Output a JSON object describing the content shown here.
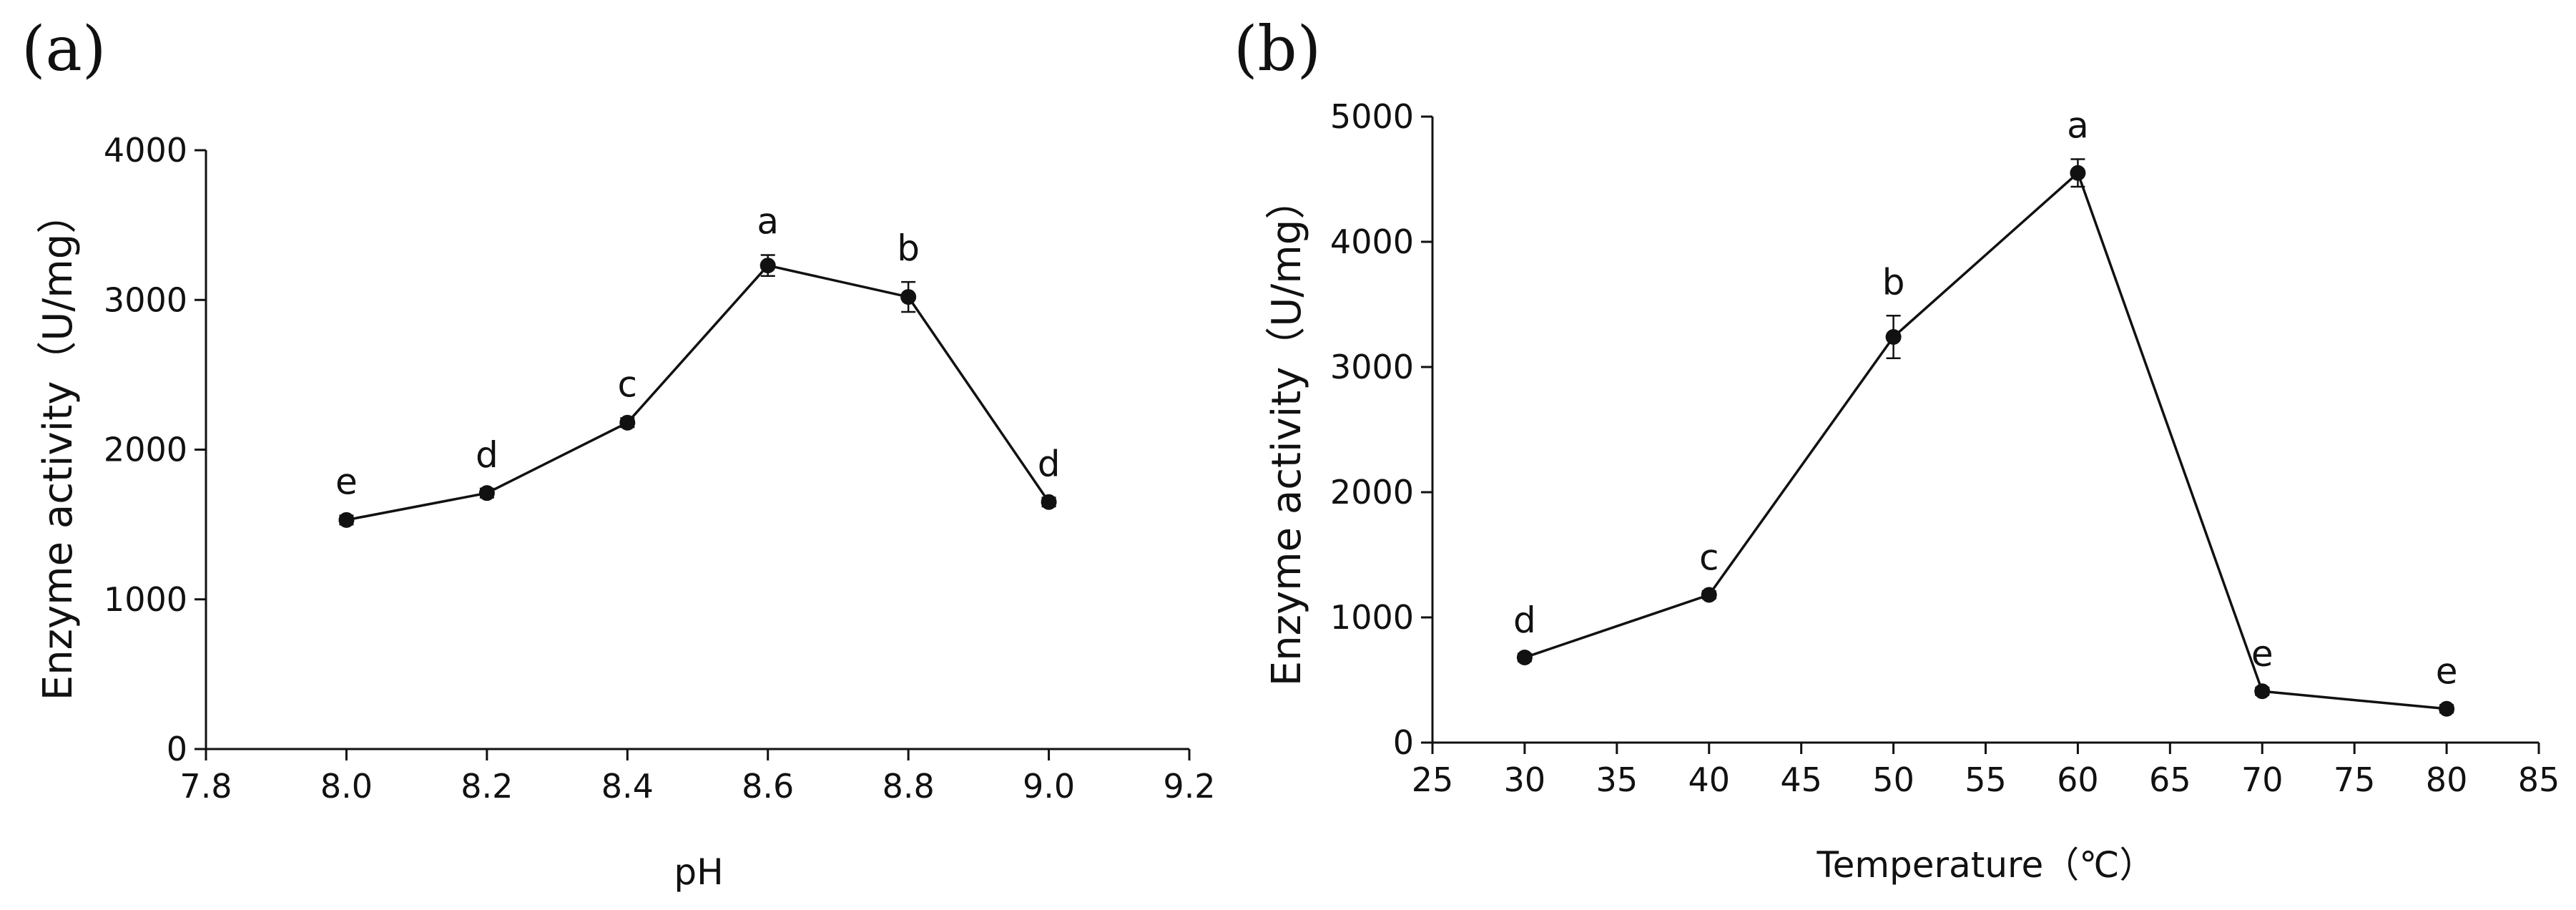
{
  "chart_data": [
    {
      "type": "line",
      "panel_label": "(a)",
      "xlabel": "pH",
      "ylabel": "Enzyme activity（U/mg）",
      "xlim": [
        7.8,
        9.2
      ],
      "ylim": [
        0,
        4000
      ],
      "xticks": [
        "7.8",
        "8.0",
        "8.2",
        "8.4",
        "8.6",
        "8.8",
        "9.0",
        "9.2"
      ],
      "yticks": [
        "0",
        "1000",
        "2000",
        "3000",
        "4000"
      ],
      "x": [
        8.0,
        8.2,
        8.4,
        8.6,
        8.8,
        9.0
      ],
      "values": [
        1530,
        1710,
        2180,
        3230,
        3020,
        1650
      ],
      "errors": [
        30,
        30,
        30,
        70,
        100,
        30
      ],
      "significance": [
        "e",
        "d",
        "c",
        "a",
        "b",
        "d"
      ]
    },
    {
      "type": "line",
      "panel_label": "(b)",
      "xlabel": "Temperature（℃）",
      "ylabel": "Enzyme activity（U/mg）",
      "xlim": [
        25,
        85
      ],
      "ylim": [
        0,
        5000
      ],
      "xticks": [
        "25",
        "30",
        "35",
        "40",
        "45",
        "50",
        "55",
        "60",
        "65",
        "70",
        "75",
        "80",
        "85"
      ],
      "yticks": [
        "0",
        "1000",
        "2000",
        "3000",
        "4000",
        "5000"
      ],
      "x": [
        30,
        40,
        50,
        60,
        70,
        80
      ],
      "values": [
        680,
        1180,
        3240,
        4550,
        410,
        270
      ],
      "errors": [
        30,
        30,
        170,
        110,
        30,
        30
      ],
      "significance": [
        "d",
        "c",
        "b",
        "a",
        "e",
        "e"
      ]
    }
  ]
}
